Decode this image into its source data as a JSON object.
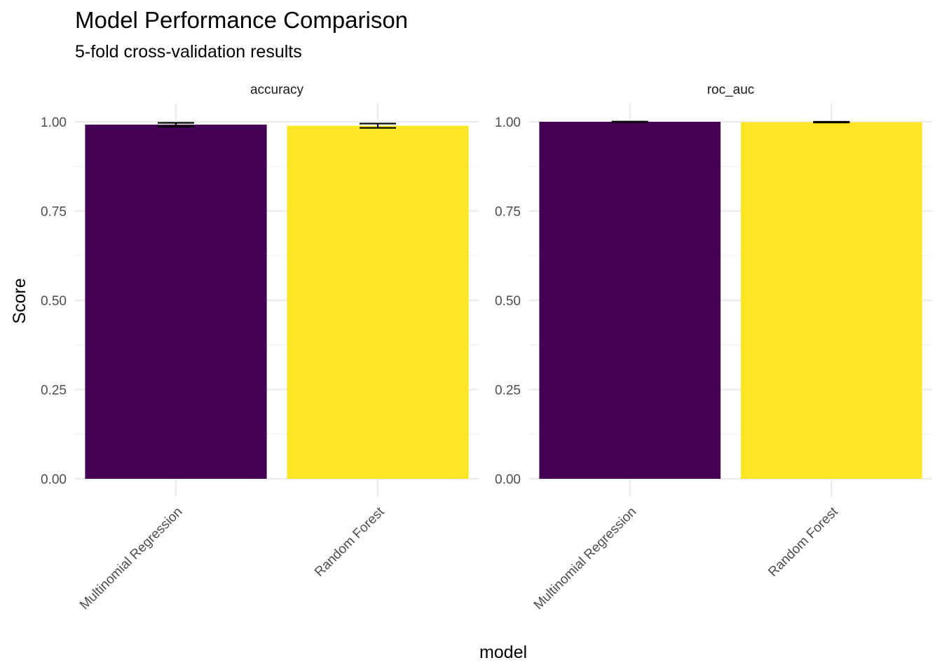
{
  "chart_data": {
    "type": "bar",
    "title": "Model Performance Comparison",
    "subtitle": "5-fold cross-validation results",
    "xlabel": "model",
    "ylabel": "Score",
    "ylim": [
      0,
      1.0
    ],
    "yticks": [
      "0.00",
      "0.25",
      "0.50",
      "0.75",
      "1.00"
    ],
    "grid": true,
    "legend": "none",
    "categories": [
      "Multinomial Regression",
      "Random Forest"
    ],
    "colors": {
      "Multinomial Regression": "#440154",
      "Random Forest": "#FDE725"
    },
    "panels": [
      {
        "name": "accuracy",
        "values": [
          0.992,
          0.989
        ],
        "error_low": [
          0.987,
          0.983
        ],
        "error_high": [
          0.997,
          0.995
        ]
      },
      {
        "name": "roc_auc",
        "values": [
          1.0,
          0.999
        ],
        "error_low": [
          0.9995,
          0.998
        ],
        "error_high": [
          1.0005,
          1.0
        ]
      }
    ]
  }
}
